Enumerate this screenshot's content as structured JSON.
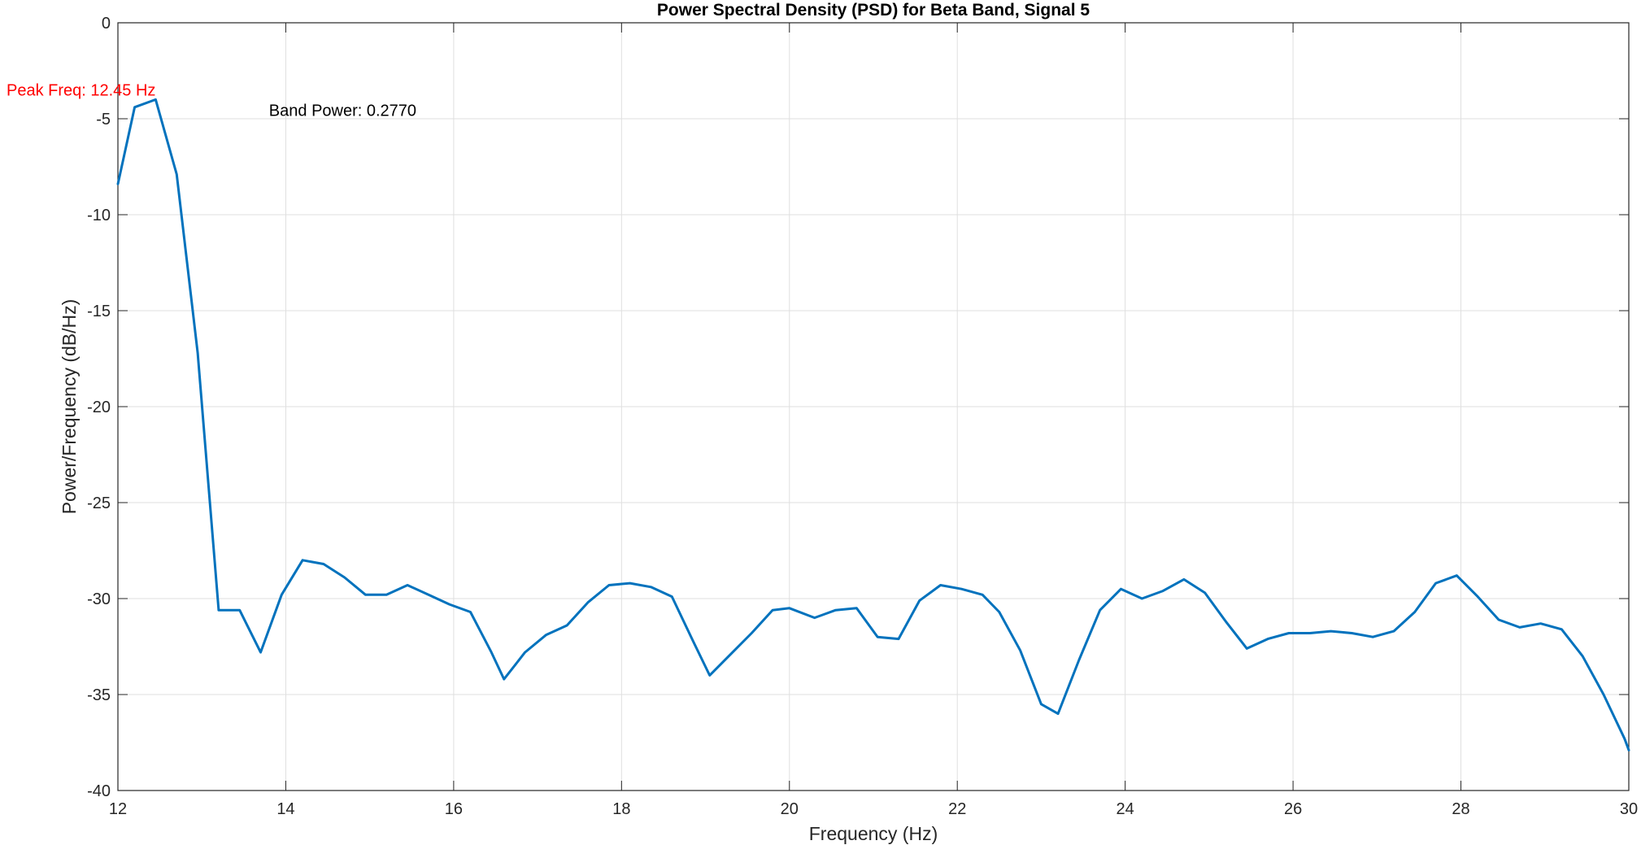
{
  "chart_data": {
    "type": "line",
    "title": "Power Spectral Density (PSD) for Beta Band, Signal 5",
    "xlabel": "Frequency (Hz)",
    "ylabel": "Power/Frequency (dB/Hz)",
    "xlim": [
      12,
      30
    ],
    "ylim": [
      -40,
      0
    ],
    "xticks": [
      12,
      14,
      16,
      18,
      20,
      22,
      24,
      26,
      28,
      30
    ],
    "yticks": [
      0,
      -5,
      -10,
      -15,
      -20,
      -25,
      -30,
      -35,
      -40
    ],
    "grid": true,
    "series": [
      {
        "color": "#0072BD",
        "x": [
          12.0,
          12.2,
          12.45,
          12.7,
          12.95,
          13.2,
          13.45,
          13.7,
          13.95,
          14.2,
          14.45,
          14.7,
          14.95,
          15.2,
          15.45,
          15.7,
          15.95,
          16.2,
          16.45,
          16.6,
          16.85,
          17.1,
          17.35,
          17.6,
          17.85,
          18.1,
          18.35,
          18.6,
          18.85,
          19.05,
          19.3,
          19.55,
          19.8,
          20.0,
          20.3,
          20.55,
          20.8,
          21.05,
          21.3,
          21.55,
          21.8,
          22.05,
          22.3,
          22.5,
          22.75,
          23.0,
          23.2,
          23.45,
          23.7,
          23.95,
          24.2,
          24.45,
          24.7,
          24.95,
          25.2,
          25.45,
          25.7,
          25.95,
          26.2,
          26.45,
          26.7,
          26.95,
          27.2,
          27.45,
          27.7,
          27.95,
          28.2,
          28.45,
          28.7,
          28.95,
          29.2,
          29.45,
          29.7,
          29.95,
          30.0
        ],
        "y": [
          -8.4,
          -4.4,
          -4.0,
          -7.9,
          -17.2,
          -30.6,
          -30.6,
          -32.8,
          -29.8,
          -28.0,
          -28.2,
          -28.9,
          -29.8,
          -29.8,
          -29.3,
          -29.8,
          -30.3,
          -30.7,
          -32.8,
          -34.2,
          -32.8,
          -31.9,
          -31.4,
          -30.2,
          -29.3,
          -29.2,
          -29.4,
          -29.9,
          -32.2,
          -34.0,
          -32.9,
          -31.8,
          -30.6,
          -30.5,
          -31.0,
          -30.6,
          -30.5,
          -32.0,
          -32.1,
          -30.1,
          -29.3,
          -29.5,
          -29.8,
          -30.7,
          -32.7,
          -35.5,
          -36.0,
          -33.2,
          -30.6,
          -29.5,
          -30.0,
          -29.6,
          -29.0,
          -29.7,
          -31.2,
          -32.6,
          -32.1,
          -31.8,
          -31.8,
          -31.7,
          -31.8,
          -32.0,
          -31.7,
          -30.7,
          -29.2,
          -28.8,
          -29.9,
          -31.1,
          -31.5,
          -31.3,
          -31.6,
          -33.0,
          -35.0,
          -37.3,
          -37.9
        ]
      }
    ],
    "annotations": [
      {
        "text": "Peak Freq: 12.45 Hz",
        "color": "#FF0000"
      },
      {
        "text": "Band Power: 0.2770",
        "color": "#000000"
      }
    ]
  }
}
